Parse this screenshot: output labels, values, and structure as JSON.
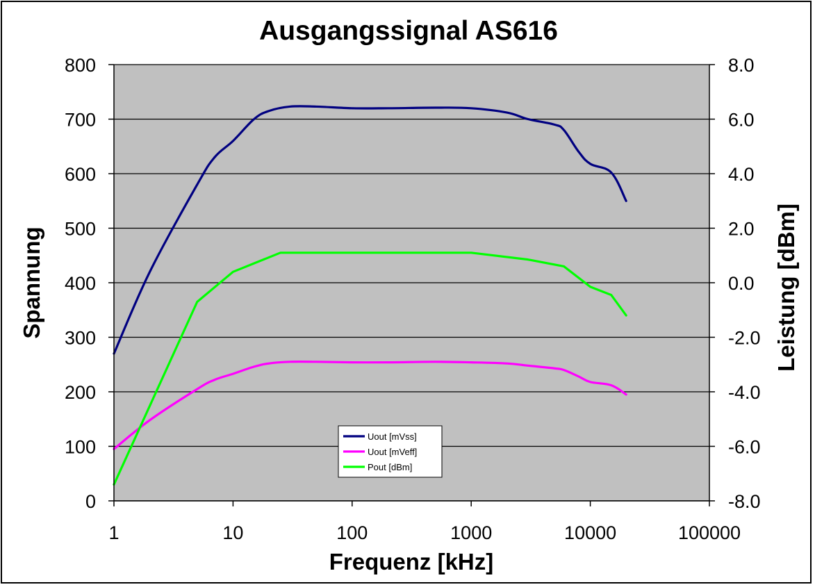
{
  "chart_data": {
    "type": "line",
    "title": "Ausgangssignal AS616",
    "xlabel": "Frequenz [kHz]",
    "ylabel": "Spannung",
    "y2label": "Leistung [dBm]",
    "x_scale": "log",
    "xlim": [
      1,
      100000
    ],
    "ylim": [
      0,
      800
    ],
    "y2lim": [
      -8.0,
      8.0
    ],
    "x_ticks": [
      "1",
      "10",
      "100",
      "1000",
      "10000",
      "100000"
    ],
    "y_ticks": [
      "0",
      "100",
      "200",
      "300",
      "400",
      "500",
      "600",
      "700",
      "800"
    ],
    "y2_ticks": [
      "-8.0",
      "-6.0",
      "-4.0",
      "-2.0",
      "0.0",
      "2.0",
      "4.0",
      "6.0",
      "8.0"
    ],
    "grid": "horizontal",
    "legend_position": "bottom-center",
    "plot_background": "#c0c0c0",
    "series": [
      {
        "name": "Uout [mVss]",
        "axis": "left",
        "color": "#000080",
        "x": [
          1,
          2,
          5,
          7,
          10,
          15,
          20,
          30,
          50,
          100,
          200,
          500,
          1000,
          2000,
          3000,
          5000,
          6000,
          8000,
          10000,
          15000,
          20000
        ],
        "y": [
          270,
          420,
          580,
          630,
          660,
          700,
          715,
          723,
          723,
          720,
          720,
          721,
          720,
          712,
          700,
          690,
          680,
          640,
          618,
          602,
          550
        ]
      },
      {
        "name": "Uout [mVeff]",
        "axis": "left",
        "color": "#ff00ff",
        "x": [
          1,
          2,
          5,
          7,
          10,
          15,
          20,
          30,
          50,
          100,
          200,
          500,
          1000,
          2000,
          3000,
          5000,
          6000,
          8000,
          10000,
          15000,
          20000
        ],
        "y": [
          95,
          148,
          205,
          222,
          233,
          246,
          252,
          255,
          255,
          254,
          254,
          255,
          254,
          252,
          248,
          243,
          240,
          228,
          218,
          212,
          195
        ]
      },
      {
        "name": "Pout [dBm]",
        "axis": "right",
        "color": "#00ff00",
        "x": [
          1,
          5,
          10,
          25,
          1000,
          3000,
          6000,
          10000,
          15000,
          20000
        ],
        "y": [
          -7.4,
          -0.7,
          0.4,
          1.1,
          1.1,
          0.85,
          0.6,
          -0.15,
          -0.45,
          -1.2
        ]
      }
    ]
  }
}
